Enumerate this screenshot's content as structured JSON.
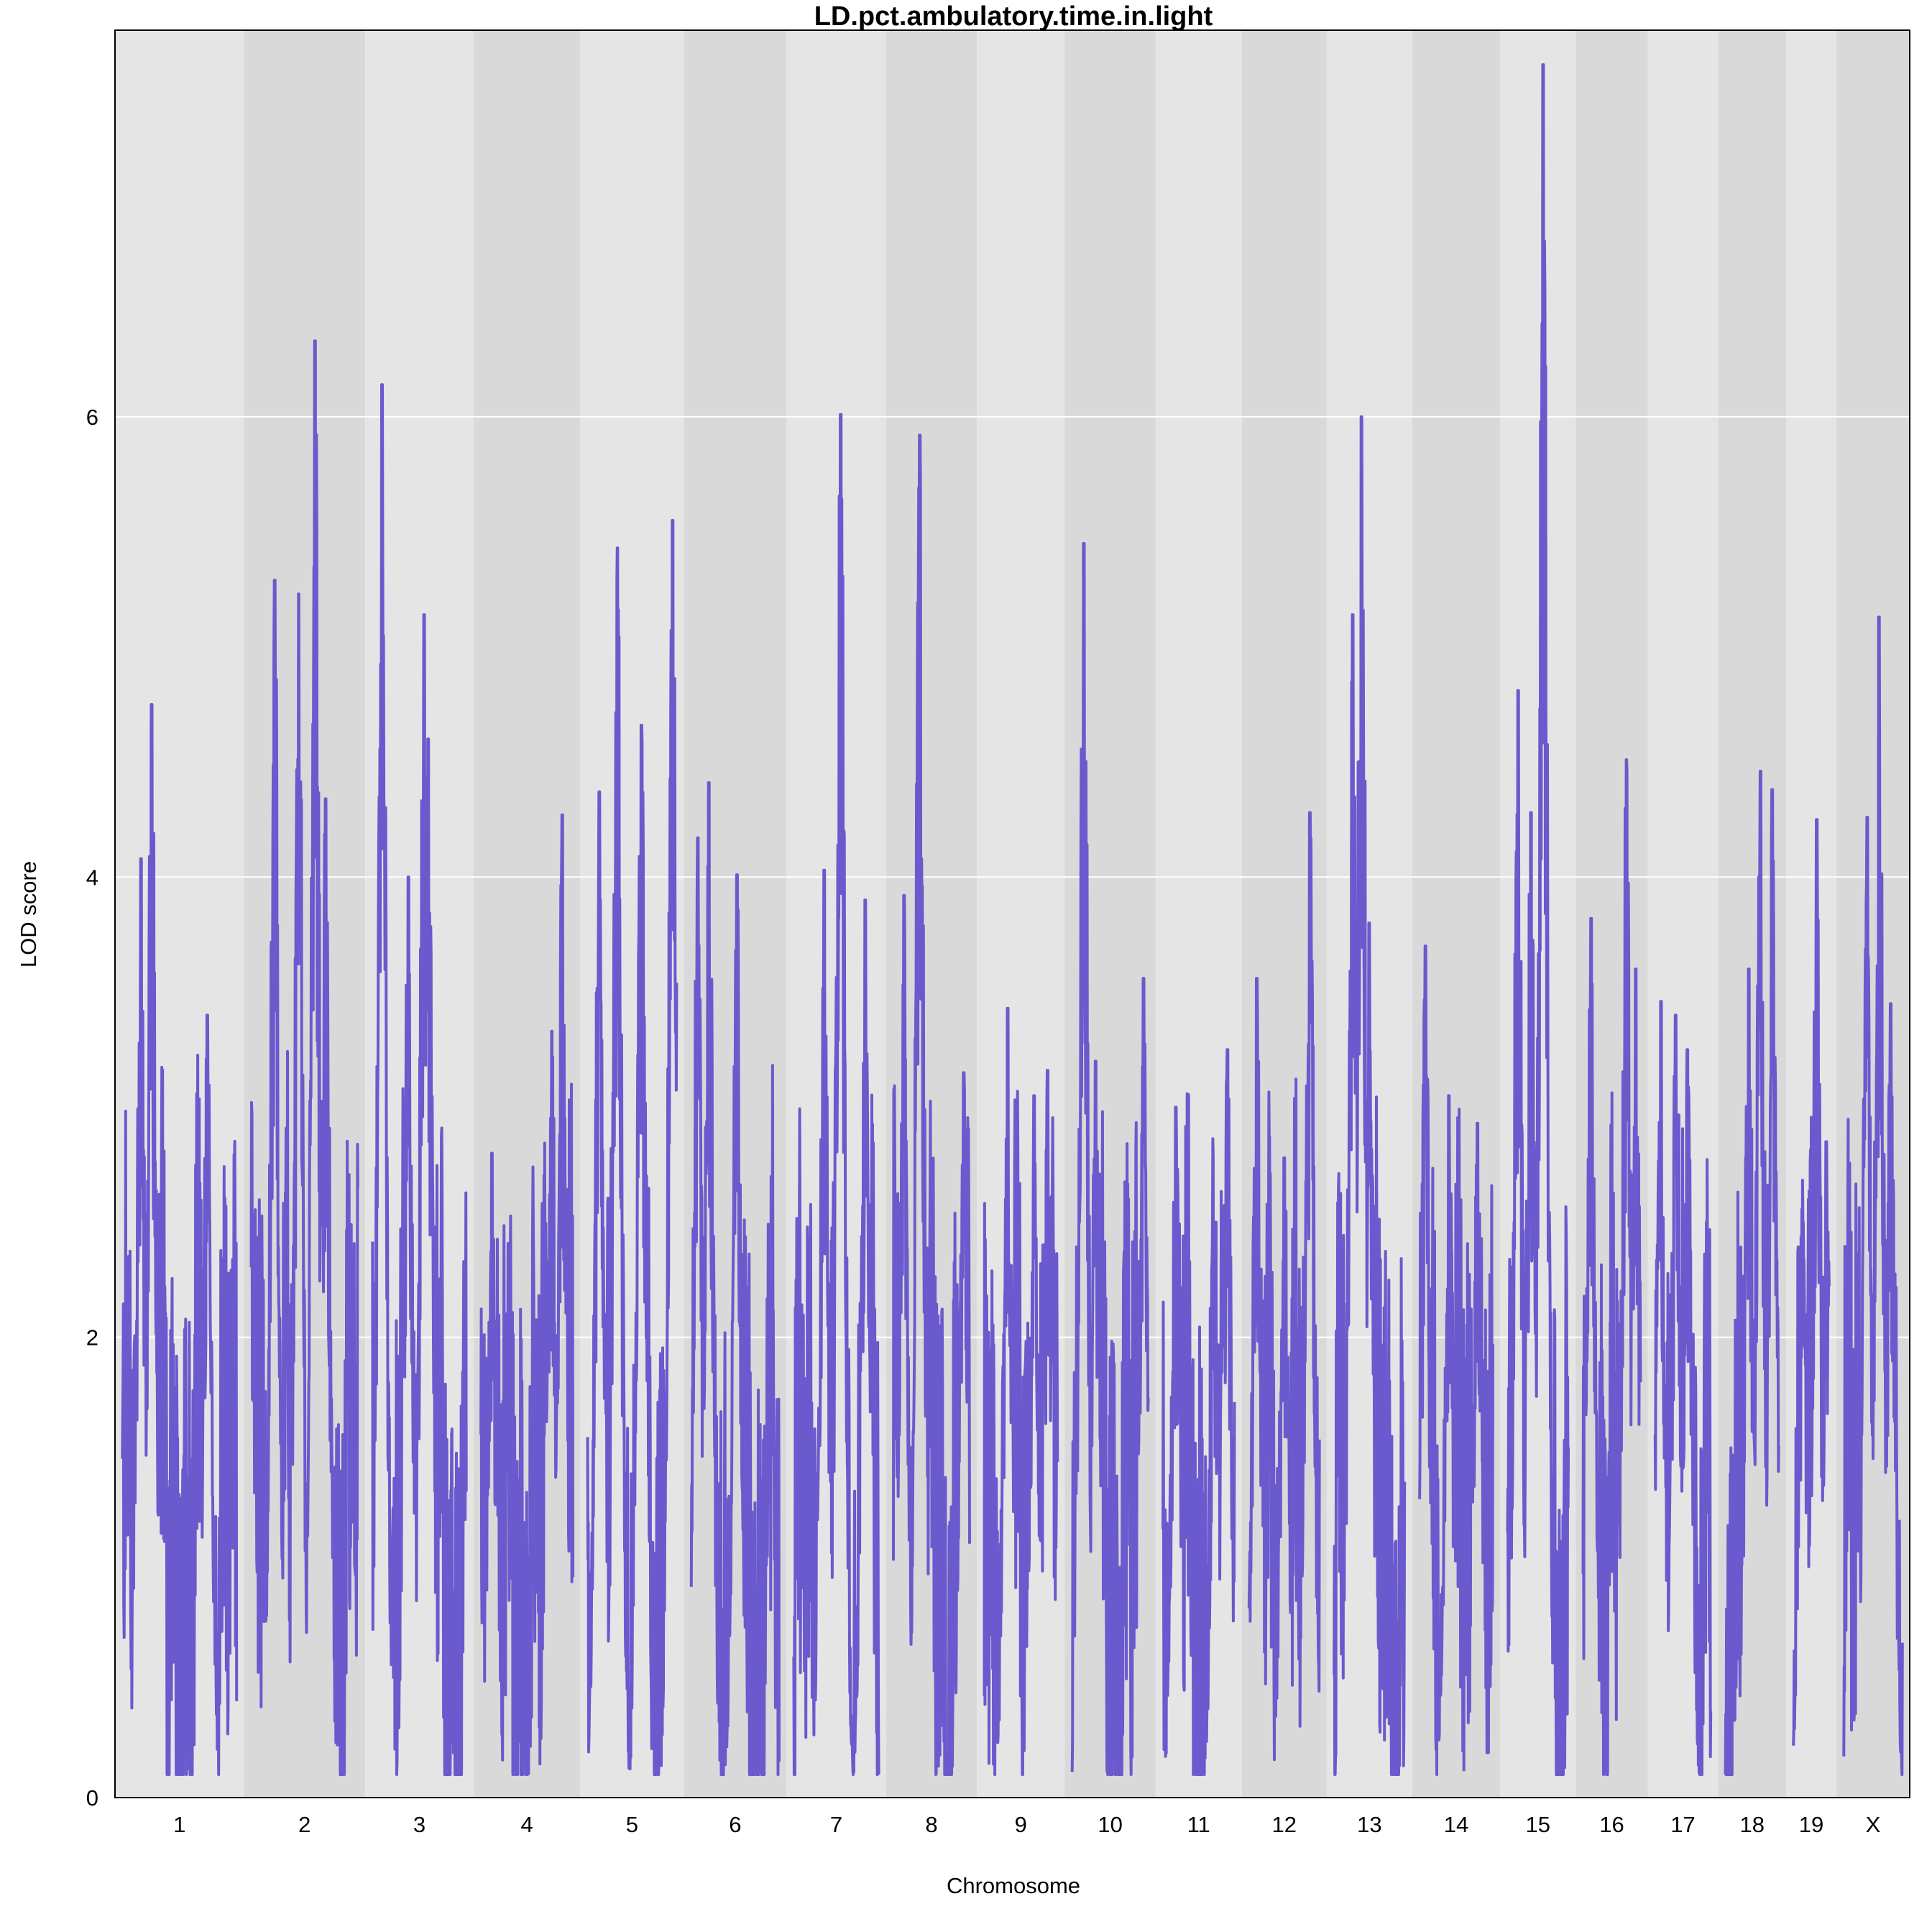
{
  "chart_data": {
    "type": "line",
    "title": "LD.pct.ambulatory.time.in.light",
    "xlabel": "Chromosome",
    "ylabel": "LOD score",
    "ylim": [
      0,
      7.68
    ],
    "yticks": [
      0,
      2,
      4,
      6
    ],
    "grid": true,
    "line_color": "#6A5ACD",
    "band_colors": [
      "#E5E5E5",
      "#D9D9D9"
    ],
    "chromosomes": [
      {
        "name": "1",
        "len": 195,
        "peaks": [
          [
            50,
            4.75
          ],
          [
            32,
            4.08
          ],
          [
            145,
            3.4
          ]
        ]
      },
      {
        "name": "2",
        "len": 182,
        "peaks": [
          [
            109,
            6.33
          ],
          [
            40,
            5.29
          ],
          [
            81,
            5.23
          ],
          [
            127,
            4.34
          ]
        ]
      },
      {
        "name": "3",
        "len": 160,
        "peaks": [
          [
            16,
            6.14
          ],
          [
            88,
            5.14
          ],
          [
            95,
            4.6
          ],
          [
            61,
            4.0
          ]
        ]
      },
      {
        "name": "4",
        "len": 157,
        "peaks": [
          [
            139,
            4.27
          ],
          [
            121,
            3.33
          ],
          [
            19,
            2.8
          ]
        ]
      },
      {
        "name": "5",
        "len": 152,
        "peaks": [
          [
            51,
            5.43
          ],
          [
            145,
            5.55
          ],
          [
            92,
            4.66
          ],
          [
            20,
            4.37
          ]
        ]
      },
      {
        "name": "6",
        "len": 150,
        "peaks": [
          [
            30,
            4.41
          ],
          [
            78,
            4.01
          ],
          [
            11,
            4.17
          ]
        ]
      },
      {
        "name": "7",
        "len": 145,
        "peaks": [
          [
            80,
            6.01
          ],
          [
            52,
            4.03
          ],
          [
            122,
            3.9
          ]
        ]
      },
      {
        "name": "8",
        "len": 130,
        "peaks": [
          [
            45,
            5.92
          ],
          [
            18,
            3.92
          ],
          [
            120,
            3.15
          ]
        ]
      },
      {
        "name": "9",
        "len": 125,
        "peaks": [
          [
            40,
            3.43
          ],
          [
            85,
            3.05
          ],
          [
            108,
            3.16
          ]
        ]
      },
      {
        "name": "10",
        "len": 130,
        "peaks": [
          [
            20,
            5.45
          ],
          [
            122,
            3.56
          ],
          [
            40,
            3.2
          ]
        ]
      },
      {
        "name": "11",
        "len": 122,
        "peaks": [
          [
            22,
            3.0
          ],
          [
            110,
            3.25
          ],
          [
            90,
            2.5
          ]
        ]
      },
      {
        "name": "12",
        "len": 120,
        "peaks": [
          [
            104,
            4.28
          ],
          [
            13,
            3.56
          ],
          [
            60,
            2.78
          ]
        ]
      },
      {
        "name": "13",
        "len": 121,
        "peaks": [
          [
            47,
            6.0
          ],
          [
            32,
            5.14
          ],
          [
            60,
            3.8
          ]
        ]
      },
      {
        "name": "14",
        "len": 125,
        "peaks": [
          [
            10,
            3.7
          ],
          [
            50,
            3.05
          ],
          [
            99,
            2.93
          ]
        ]
      },
      {
        "name": "15",
        "len": 104,
        "peaks": [
          [
            61,
            7.53
          ],
          [
            18,
            4.81
          ],
          [
            40,
            4.28
          ]
        ]
      },
      {
        "name": "16",
        "len": 98,
        "peaks": [
          [
            74,
            4.51
          ],
          [
            14,
            3.82
          ],
          [
            90,
            3.6
          ]
        ]
      },
      {
        "name": "17",
        "len": 95,
        "peaks": [
          [
            55,
            3.25
          ],
          [
            10,
            3.46
          ],
          [
            35,
            3.4
          ]
        ]
      },
      {
        "name": "18",
        "len": 91,
        "peaks": [
          [
            60,
            4.46
          ],
          [
            40,
            3.6
          ],
          [
            80,
            4.38
          ]
        ]
      },
      {
        "name": "19",
        "len": 61,
        "peaks": [
          [
            40,
            4.25
          ],
          [
            16,
            2.5
          ],
          [
            56,
            2.85
          ]
        ]
      },
      {
        "name": "X",
        "len": 100,
        "peaks": [
          [
            60,
            5.13
          ],
          [
            40,
            4.26
          ],
          [
            80,
            3.45
          ]
        ]
      }
    ]
  }
}
